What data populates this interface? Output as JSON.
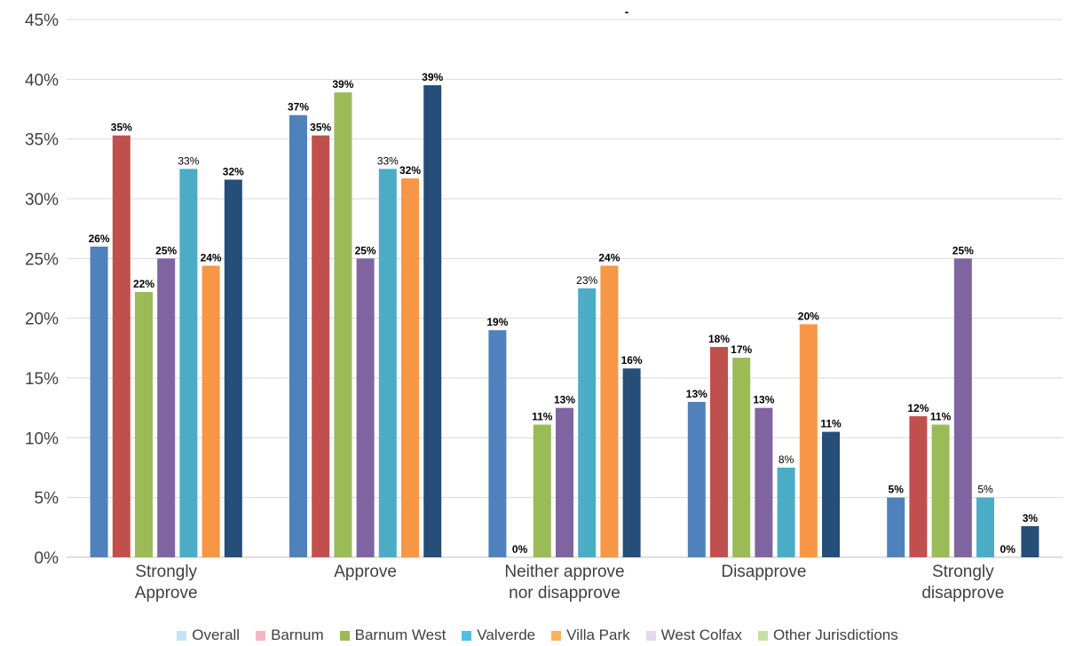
{
  "chart_data": {
    "type": "bar",
    "title": "-",
    "categories": [
      [
        "Strongly",
        "Approve"
      ],
      [
        "Approve"
      ],
      [
        "Neither approve",
        "nor disapprove"
      ],
      [
        "Disapprove"
      ],
      [
        "Strongly",
        "disapprove"
      ]
    ],
    "ylim": [
      0,
      45
    ],
    "yticks": [
      "0%",
      "5%",
      "10%",
      "15%",
      "20%",
      "25%",
      "30%",
      "35%",
      "40%",
      "45%"
    ],
    "grid": true,
    "legend_position": "bottom",
    "series": [
      {
        "color": "#4f81bd",
        "values": [
          26,
          37,
          19,
          13,
          5
        ],
        "labels": [
          "26%",
          "37%",
          "19%",
          "13%",
          "5%"
        ],
        "label_weight": "bold"
      },
      {
        "color": "#c0504d",
        "values": [
          35.3,
          35.3,
          0,
          17.6,
          11.8
        ],
        "labels": [
          "35%",
          "35%",
          "0%",
          "18%",
          "12%"
        ],
        "label_weight": "bold"
      },
      {
        "color": "#9bbb59",
        "values": [
          22.2,
          38.9,
          11.1,
          16.7,
          11.1
        ],
        "labels": [
          "22%",
          "39%",
          "11%",
          "17%",
          "11%"
        ],
        "label_weight": "bold"
      },
      {
        "color": "#8064a2",
        "values": [
          25,
          25,
          12.5,
          12.5,
          25
        ],
        "labels": [
          "25%",
          "25%",
          "13%",
          "13%",
          "25%"
        ],
        "label_weight": "bold"
      },
      {
        "color": "#4bacc6",
        "values": [
          32.5,
          32.5,
          22.5,
          7.5,
          5
        ],
        "labels": [
          "33%",
          "33%",
          "23%",
          "8%",
          "5%"
        ],
        "label_weight": "normal"
      },
      {
        "color": "#f79646",
        "values": [
          24.4,
          31.7,
          24.4,
          19.5,
          0
        ],
        "labels": [
          "24%",
          "32%",
          "24%",
          "20%",
          "0%"
        ],
        "label_weight": "bold"
      },
      {
        "color": "#254e78",
        "values": [
          31.6,
          39.5,
          15.8,
          10.5,
          2.6
        ],
        "labels": [
          "32%",
          "39%",
          "16%",
          "11%",
          "3%"
        ],
        "label_weight": "bold"
      }
    ],
    "legend": [
      {
        "name": "Overall",
        "color": "#c5e3f6"
      },
      {
        "name": "Barnum",
        "color": "#f4b6c2"
      },
      {
        "name": "Barnum West",
        "color": "#9bbb59"
      },
      {
        "name": "Valverde",
        "color": "#4bc0e8"
      },
      {
        "name": "Villa Park",
        "color": "#fbb35f"
      },
      {
        "name": "West Colfax",
        "color": "#e4d9ef"
      },
      {
        "name": "Other Jurisdictions",
        "color": "#c6e0a4"
      }
    ]
  }
}
